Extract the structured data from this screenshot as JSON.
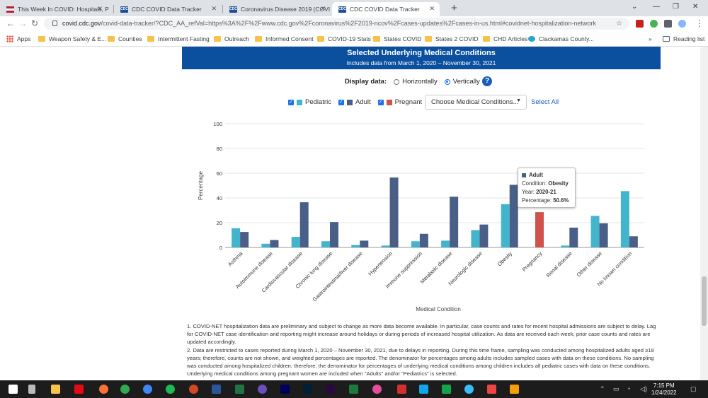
{
  "browser": {
    "tabs": [
      {
        "title": "This Week In COVID: Hospitals, P",
        "icon": "flag-icon"
      },
      {
        "title": "CDC COVID Data Tracker",
        "icon": "cdc-icon"
      },
      {
        "title": "Coronavirus Disease 2019 (COVI",
        "icon": "cdc-icon"
      },
      {
        "title": "CDC COVID Data Tracker",
        "icon": "cdc-icon"
      }
    ],
    "active_tab": 3,
    "url_host": "covid.cdc.gov",
    "url_rest": "/covid-data-tracker/?CDC_AA_refVal=https%3A%2F%2Fwww.cdc.gov%2Fcoronavirus%2F2019-ncov%2Fcases-updates%2Fcases-in-us.html#covidnet-hospitalization-network",
    "bookmarks": [
      "Apps",
      "Weapon Safety & E...",
      "Counties",
      "Intermittent Fasting",
      "Outreach",
      "Informed Consent",
      "COVID-19 Stats",
      "States COVID",
      "States 2 COVID",
      "CHD Articles",
      "Clackamas County..."
    ],
    "more": "»",
    "reading_list": "Reading list"
  },
  "page": {
    "title": "Selected Underlying Medical Conditions",
    "subtitle": "Includes data from March 1, 2020 – November 30, 2021",
    "display_label": "Display data:",
    "display_options": [
      "Horizontally",
      "Vertically"
    ],
    "display_selected": "Vertically",
    "help": "?",
    "legend": [
      {
        "label": "Pediatric",
        "color": "#42b5cc"
      },
      {
        "label": "Adult",
        "color": "#4a5f87"
      },
      {
        "label": "Pregnant",
        "color": "#d0524a"
      }
    ],
    "dropdown_label": "Choose Medical Conditions...",
    "select_all": "Select All",
    "tooltip": {
      "series": "Adult",
      "condition_label": "Condition:",
      "condition": "Obesity",
      "year_label": "Year:",
      "year": "2020-21",
      "pct_label": "Percentage:",
      "pct": "50.6%"
    },
    "notes": [
      "1. COVID-NET hospitalization data are preliminary and subject to change as more data become available. In particular, case counts and rates for recent hospital admissions are subject to delay. Lag for COVID-NET case identification and reporting might increase around holidays or during periods of increased hospital utilization. As data are received each week, prior case counts and rates are updated accordingly.",
      "2. Data are restricted to cases reported during March 1, 2020 – November 30, 2021, due to delays in reporting. During this time frame, sampling was conducted among hospitalized adults aged ≥18 years; therefore, counts are not shown, and weighted percentages are reported. The denominator for percentages among adults includes sampled cases with data on these conditions. No sampling was conducted among hospitalized children; therefore, the denominator for percentages of underlying medical conditions among children includes all pediatric cases with data on these conditions. Underlying medical conditions among pregnant women are included when \"Adults\" and/or \"Pediatrics\" is selected."
    ]
  },
  "chart_data": {
    "type": "bar",
    "xlabel": "Medical Condition",
    "ylabel": "Percentage",
    "ylim": [
      0,
      100
    ],
    "yticks": [
      0,
      20,
      40,
      60,
      80,
      100
    ],
    "grid": true,
    "categories": [
      "Asthma",
      "Autoimmune disease",
      "Cardiovascular disease",
      "Chronic lung disease",
      "Gastrointestinal/liver disease",
      "Hypertension",
      "Immune suppression",
      "Metabolic disease",
      "Neurologic disease",
      "Obesity",
      "Pregnancy",
      "Renal disease",
      "Other disease",
      "No known condition"
    ],
    "series": [
      {
        "name": "Pediatric",
        "color": "#42b5cc",
        "values": [
          15.5,
          3,
          8.5,
          5,
          2,
          1.5,
          5,
          5.5,
          14,
          35,
          null,
          1.5,
          25.5,
          45.5
        ]
      },
      {
        "name": "Adult",
        "color": "#4a5f87",
        "values": [
          12.5,
          6,
          36.5,
          20.5,
          5.5,
          56.5,
          11,
          41,
          18.5,
          50.6,
          null,
          16,
          19.5,
          9
        ]
      },
      {
        "name": "Pregnant",
        "color": "#d0524a",
        "values": [
          null,
          null,
          null,
          null,
          null,
          null,
          null,
          null,
          null,
          null,
          28.5,
          null,
          null,
          null
        ]
      }
    ]
  },
  "taskbar": {
    "time": "7:15 PM",
    "date": "1/24/2022"
  }
}
